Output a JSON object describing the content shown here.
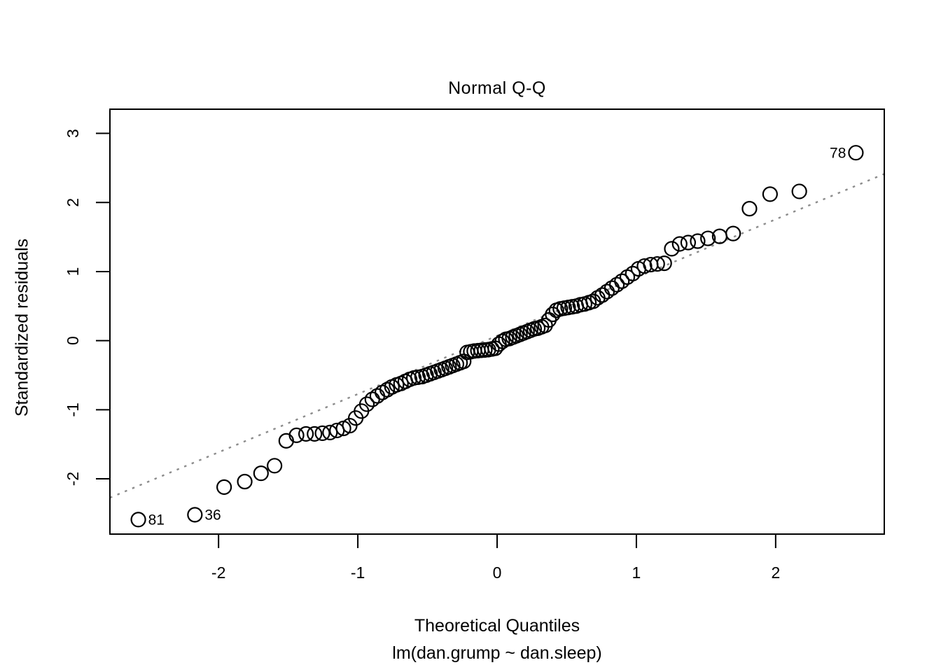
{
  "chart_data": {
    "type": "scatter",
    "title": "Normal Q-Q",
    "xlabel": "Theoretical Quantiles",
    "sublabel": "lm(dan.grump ~ dan.sleep)",
    "ylabel": "Standardized residuals",
    "xlim": [
      -2.78,
      2.78
    ],
    "ylim": [
      -2.8,
      3.35
    ],
    "x_ticks": [
      -2,
      -1,
      0,
      1,
      2
    ],
    "y_ticks": [
      -2,
      -1,
      0,
      1,
      2,
      3
    ],
    "grid": false,
    "point_style": {
      "shape": "open-circle",
      "color": "#000000",
      "radius_px": 10
    },
    "reference_line": {
      "slope": 0.843,
      "intercept": 0.07,
      "style": "dotted",
      "color": "#8c8c8c"
    },
    "points": [
      [
        -2.576,
        -2.59
      ],
      [
        -2.17,
        -2.52
      ],
      [
        -1.96,
        -2.12
      ],
      [
        -1.812,
        -2.04
      ],
      [
        -1.695,
        -1.92
      ],
      [
        -1.598,
        -1.81
      ],
      [
        -1.514,
        -1.45
      ],
      [
        -1.44,
        -1.37
      ],
      [
        -1.372,
        -1.35
      ],
      [
        -1.311,
        -1.35
      ],
      [
        -1.254,
        -1.34
      ],
      [
        -1.2,
        -1.33
      ],
      [
        -1.15,
        -1.3
      ],
      [
        -1.103,
        -1.27
      ],
      [
        -1.058,
        -1.23
      ],
      [
        -1.015,
        -1.12
      ],
      [
        -0.974,
        -1.02
      ],
      [
        -0.935,
        -0.92
      ],
      [
        -0.896,
        -0.85
      ],
      [
        -0.86,
        -0.8
      ],
      [
        -0.824,
        -0.75
      ],
      [
        -0.789,
        -0.71
      ],
      [
        -0.755,
        -0.67
      ],
      [
        -0.722,
        -0.64
      ],
      [
        -0.69,
        -0.62
      ],
      [
        -0.659,
        -0.59
      ],
      [
        -0.628,
        -0.56
      ],
      [
        -0.598,
        -0.54
      ],
      [
        -0.568,
        -0.53
      ],
      [
        -0.539,
        -0.52
      ],
      [
        -0.51,
        -0.5
      ],
      [
        -0.482,
        -0.48
      ],
      [
        -0.454,
        -0.46
      ],
      [
        -0.426,
        -0.44
      ],
      [
        -0.399,
        -0.42
      ],
      [
        -0.372,
        -0.4
      ],
      [
        -0.345,
        -0.38
      ],
      [
        -0.319,
        -0.36
      ],
      [
        -0.292,
        -0.34
      ],
      [
        -0.266,
        -0.32
      ],
      [
        -0.24,
        -0.3
      ],
      [
        -0.215,
        -0.17
      ],
      [
        -0.189,
        -0.16
      ],
      [
        -0.164,
        -0.15
      ],
      [
        -0.138,
        -0.145
      ],
      [
        -0.113,
        -0.14
      ],
      [
        -0.088,
        -0.135
      ],
      [
        -0.063,
        -0.13
      ],
      [
        -0.038,
        -0.12
      ],
      [
        -0.013,
        -0.11
      ],
      [
        0.013,
        -0.05
      ],
      [
        0.038,
        -0.01
      ],
      [
        0.063,
        0.02
      ],
      [
        0.088,
        0.03
      ],
      [
        0.113,
        0.05
      ],
      [
        0.138,
        0.07
      ],
      [
        0.164,
        0.09
      ],
      [
        0.189,
        0.11
      ],
      [
        0.215,
        0.13
      ],
      [
        0.24,
        0.15
      ],
      [
        0.266,
        0.17
      ],
      [
        0.292,
        0.18
      ],
      [
        0.319,
        0.2
      ],
      [
        0.345,
        0.22
      ],
      [
        0.372,
        0.3
      ],
      [
        0.399,
        0.38
      ],
      [
        0.426,
        0.44
      ],
      [
        0.454,
        0.46
      ],
      [
        0.482,
        0.47
      ],
      [
        0.51,
        0.48
      ],
      [
        0.539,
        0.49
      ],
      [
        0.568,
        0.5
      ],
      [
        0.598,
        0.52
      ],
      [
        0.628,
        0.53
      ],
      [
        0.659,
        0.55
      ],
      [
        0.69,
        0.57
      ],
      [
        0.722,
        0.62
      ],
      [
        0.755,
        0.66
      ],
      [
        0.789,
        0.71
      ],
      [
        0.824,
        0.76
      ],
      [
        0.86,
        0.81
      ],
      [
        0.896,
        0.86
      ],
      [
        0.935,
        0.92
      ],
      [
        0.974,
        0.97
      ],
      [
        1.015,
        1.04
      ],
      [
        1.058,
        1.08
      ],
      [
        1.103,
        1.1
      ],
      [
        1.15,
        1.11
      ],
      [
        1.2,
        1.12
      ],
      [
        1.254,
        1.33
      ],
      [
        1.311,
        1.4
      ],
      [
        1.372,
        1.42
      ],
      [
        1.44,
        1.44
      ],
      [
        1.514,
        1.48
      ],
      [
        1.598,
        1.51
      ],
      [
        1.695,
        1.55
      ],
      [
        1.812,
        1.91
      ],
      [
        1.96,
        2.12
      ],
      [
        2.17,
        2.16
      ],
      [
        2.576,
        2.72
      ]
    ],
    "labeled_points": [
      {
        "label": "78",
        "x": 2.576,
        "y": 2.72,
        "side": "left"
      },
      {
        "label": "81",
        "x": -2.576,
        "y": -2.59,
        "side": "right"
      },
      {
        "label": "36",
        "x": -2.17,
        "y": -2.52,
        "side": "right"
      }
    ]
  }
}
